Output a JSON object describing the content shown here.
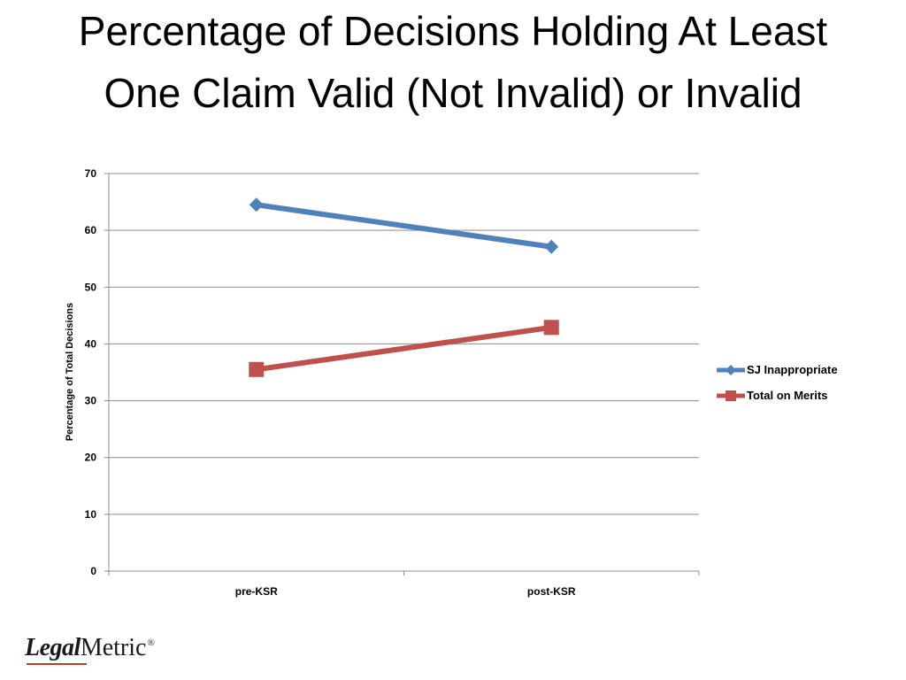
{
  "slide": {
    "title": "Percentage of Decisions Holding At Least One Claim Valid (Not Invalid) or Invalid"
  },
  "logo": {
    "part1": "Legal",
    "part2": "Metric",
    "mark": "®",
    "accent_color": "#c0392b"
  },
  "chart_data": {
    "type": "line",
    "categories": [
      "pre-KSR",
      "post-KSR"
    ],
    "series": [
      {
        "name": "SJ Inappropriate",
        "values": [
          64.5,
          57.1
        ],
        "color": "#4f81bd",
        "marker": "diamond"
      },
      {
        "name": "Total on Merits",
        "values": [
          35.5,
          42.9
        ],
        "color": "#c0504d",
        "marker": "square"
      }
    ],
    "title": "Percentage of Decisions Holding At Least One Claim Valid (Not Invalid) or Invalid",
    "xlabel": "",
    "ylabel": "Percentage of Total Decisions",
    "ylim": [
      0,
      70
    ],
    "yticks": [
      0,
      10,
      20,
      30,
      40,
      50,
      60,
      70
    ],
    "grid": true,
    "legend": "right"
  }
}
